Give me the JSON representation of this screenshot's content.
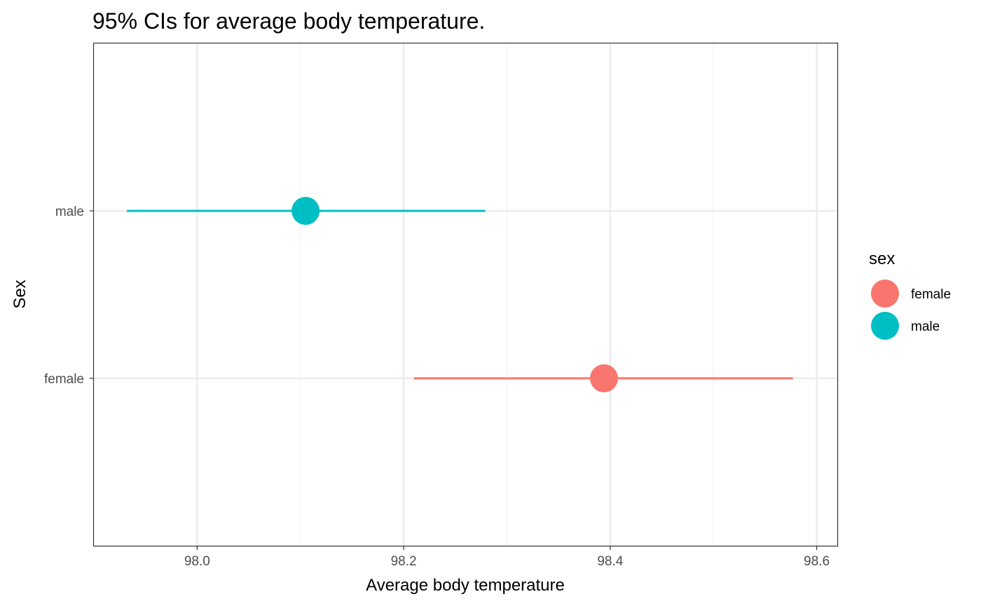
{
  "chart_data": {
    "type": "scatter",
    "title": "95% CIs for average body temperature.",
    "xlabel": "Average body temperature",
    "ylabel": "Sex",
    "xlim": [
      97.9,
      98.62
    ],
    "x_ticks": [
      "98.0",
      "98.2",
      "98.4",
      "98.6"
    ],
    "x_tick_values": [
      98.0,
      98.2,
      98.4,
      98.6
    ],
    "y_categories": [
      "female",
      "male"
    ],
    "grid": true,
    "legend_placement": "right",
    "legend": {
      "title": "sex",
      "entries": [
        "female",
        "male"
      ]
    },
    "series": [
      {
        "name": "female",
        "category": "female",
        "estimate": 98.394,
        "lower": 98.21,
        "upper": 98.577,
        "color": "#F8766D"
      },
      {
        "name": "male",
        "category": "male",
        "estimate": 98.105,
        "lower": 97.932,
        "upper": 98.279,
        "color": "#00BFC4"
      }
    ],
    "colors": {
      "panel_border": "#333333",
      "grid_major": "#ebebeb",
      "grid_minor": "#f2f2f2",
      "tick_text": "#4d4d4d"
    }
  }
}
